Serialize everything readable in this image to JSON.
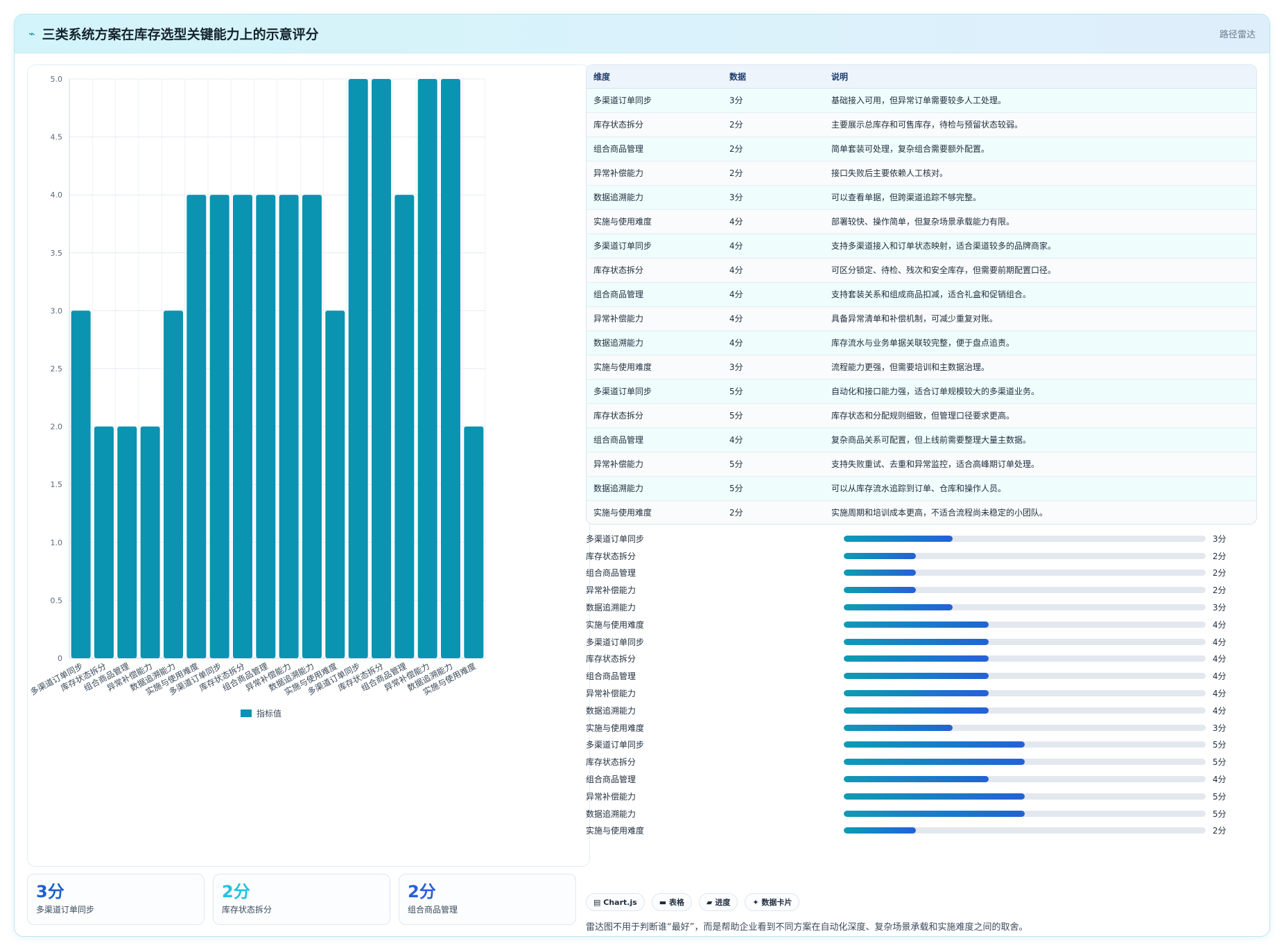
{
  "header": {
    "icon": "trend-line-icon",
    "title": "三类系统方案在库存选型关键能力上的示意评分",
    "tag": "路径雷达"
  },
  "chart_data": {
    "type": "bar",
    "categories": [
      "多渠道订单同步",
      "库存状态拆分",
      "组合商品管理",
      "异常补偿能力",
      "数据追溯能力",
      "实施与使用难度",
      "多渠道订单同步",
      "库存状态拆分",
      "组合商品管理",
      "异常补偿能力",
      "数据追溯能力",
      "实施与使用难度",
      "多渠道订单同步",
      "库存状态拆分",
      "组合商品管理",
      "异常补偿能力",
      "数据追溯能力",
      "实施与使用难度"
    ],
    "series": [
      {
        "name": "指标值",
        "values": [
          3,
          2,
          2,
          2,
          3,
          4,
          4,
          4,
          4,
          4,
          4,
          3,
          5,
          5,
          4,
          5,
          5,
          2
        ],
        "color": "#0b93b2"
      }
    ],
    "yticks": [
      "0",
      "0.5",
      "1.0",
      "1.5",
      "2.0",
      "2.5",
      "3.0",
      "3.5",
      "4.0",
      "4.5",
      "5.0"
    ],
    "ylim": [
      0,
      5
    ],
    "grid": true,
    "legend": "bottom"
  },
  "table": {
    "headers": [
      "维度",
      "数据",
      "说明"
    ],
    "rows": [
      [
        "多渠道订单同步",
        "3分",
        "基础接入可用，但异常订单需要较多人工处理。"
      ],
      [
        "库存状态拆分",
        "2分",
        "主要展示总库存和可售库存，待检与预留状态较弱。"
      ],
      [
        "组合商品管理",
        "2分",
        "简单套装可处理，复杂组合需要额外配置。"
      ],
      [
        "异常补偿能力",
        "2分",
        "接口失败后主要依赖人工核对。"
      ],
      [
        "数据追溯能力",
        "3分",
        "可以查看单据，但跨渠道追踪不够完整。"
      ],
      [
        "实施与使用难度",
        "4分",
        "部署较快、操作简单，但复杂场景承载能力有限。"
      ],
      [
        "多渠道订单同步",
        "4分",
        "支持多渠道接入和订单状态映射，适合渠道较多的品牌商家。"
      ],
      [
        "库存状态拆分",
        "4分",
        "可区分锁定、待检、残次和安全库存，但需要前期配置口径。"
      ],
      [
        "组合商品管理",
        "4分",
        "支持套装关系和组成商品扣减，适合礼盒和促销组合。"
      ],
      [
        "异常补偿能力",
        "4分",
        "具备异常清单和补偿机制，可减少重复对账。"
      ],
      [
        "数据追溯能力",
        "4分",
        "库存流水与业务单据关联较完整，便于盘点追责。"
      ],
      [
        "实施与使用难度",
        "3分",
        "流程能力更强，但需要培训和主数据治理。"
      ],
      [
        "多渠道订单同步",
        "5分",
        "自动化和接口能力强，适合订单规模较大的多渠道业务。"
      ],
      [
        "库存状态拆分",
        "5分",
        "库存状态和分配规则细致，但管理口径要求更高。"
      ],
      [
        "组合商品管理",
        "4分",
        "复杂商品关系可配置，但上线前需要整理大量主数据。"
      ],
      [
        "异常补偿能力",
        "5分",
        "支持失败重试、去重和异常监控，适合高峰期订单处理。"
      ],
      [
        "数据追溯能力",
        "5分",
        "可以从库存流水追踪到订单、仓库和操作人员。"
      ],
      [
        "实施与使用难度",
        "2分",
        "实施周期和培训成本更高，不适合流程尚未稳定的小团队。"
      ]
    ]
  },
  "progress": {
    "max": 5,
    "items": [
      {
        "label": "多渠道订单同步",
        "value": 3,
        "text": "3分"
      },
      {
        "label": "库存状态拆分",
        "value": 2,
        "text": "2分"
      },
      {
        "label": "组合商品管理",
        "value": 2,
        "text": "2分"
      },
      {
        "label": "异常补偿能力",
        "value": 2,
        "text": "2分"
      },
      {
        "label": "数据追溯能力",
        "value": 3,
        "text": "3分"
      },
      {
        "label": "实施与使用难度",
        "value": 4,
        "text": "4分"
      },
      {
        "label": "多渠道订单同步",
        "value": 4,
        "text": "4分"
      },
      {
        "label": "库存状态拆分",
        "value": 4,
        "text": "4分"
      },
      {
        "label": "组合商品管理",
        "value": 4,
        "text": "4分"
      },
      {
        "label": "异常补偿能力",
        "value": 4,
        "text": "4分"
      },
      {
        "label": "数据追溯能力",
        "value": 4,
        "text": "4分"
      },
      {
        "label": "实施与使用难度",
        "value": 3,
        "text": "3分"
      },
      {
        "label": "多渠道订单同步",
        "value": 5,
        "text": "5分"
      },
      {
        "label": "库存状态拆分",
        "value": 5,
        "text": "5分"
      },
      {
        "label": "组合商品管理",
        "value": 4,
        "text": "4分"
      },
      {
        "label": "异常补偿能力",
        "value": 5,
        "text": "5分"
      },
      {
        "label": "数据追溯能力",
        "value": 5,
        "text": "5分"
      },
      {
        "label": "实施与使用难度",
        "value": 2,
        "text": "2分"
      }
    ]
  },
  "stats": [
    {
      "value": "3分",
      "label": "多渠道订单同步",
      "color": "#1d5fd0"
    },
    {
      "value": "2分",
      "label": "库存状态拆分",
      "color": "#22c2de"
    },
    {
      "value": "2分",
      "label": "组合商品管理",
      "color": "#2a5fd8"
    }
  ],
  "chips": [
    {
      "icon": "chart-icon",
      "glyph": "▤",
      "label": "Chart.js"
    },
    {
      "icon": "table-icon",
      "glyph": "▬",
      "label": "表格"
    },
    {
      "icon": "progress-icon",
      "glyph": "▰",
      "label": "进度"
    },
    {
      "icon": "sparkle-icon",
      "glyph": "✦",
      "label": "数据卡片"
    }
  ],
  "note": "雷达图不用于判断谁“最好”，而是帮助企业看到不同方案在自动化深度、复杂场景承载和实施难度之间的取舍。"
}
